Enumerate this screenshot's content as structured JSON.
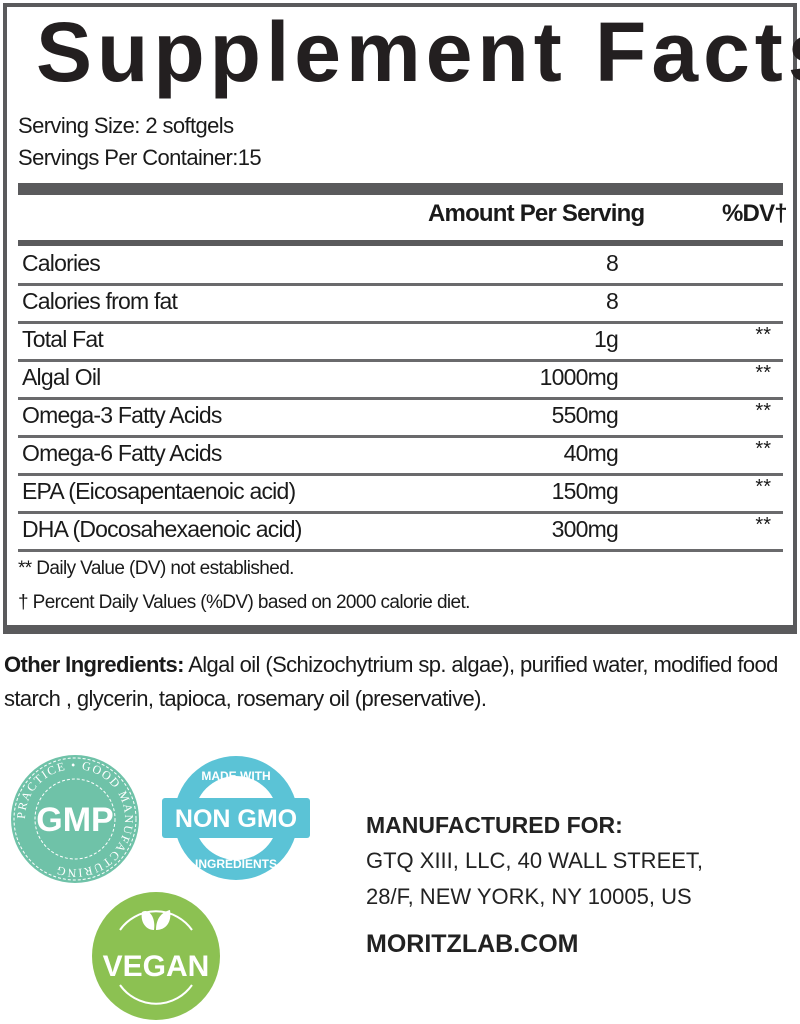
{
  "title": "Supplement Facts",
  "serving_size": "Serving Size: 2 softgels",
  "servings_per_container": "Servings Per Container:15",
  "headers": {
    "amount": "Amount Per Serving",
    "dv": "%DV†"
  },
  "rows": [
    {
      "name": "Calories",
      "amount": "8",
      "dv": ""
    },
    {
      "name": "Calories from fat",
      "amount": "8",
      "dv": ""
    },
    {
      "name": "Total Fat",
      "amount": "1g",
      "dv": "**"
    },
    {
      "name": "Algal Oil",
      "amount": "1000mg",
      "dv": "**"
    },
    {
      "name": "Omega-3 Fatty Acids",
      "amount": "550mg",
      "dv": "**"
    },
    {
      "name": "Omega-6 Fatty Acids",
      "amount": "40mg",
      "dv": "**"
    },
    {
      "name": "EPA (Eicosapentaenoic acid)",
      "amount": "150mg",
      "dv": "**"
    },
    {
      "name": "DHA (Docosahexaenoic acid)",
      "amount": "300mg",
      "dv": "**"
    }
  ],
  "footnotes": [
    "** Daily Value (DV) not established.",
    "† Percent Daily Values (%DV) based on 2000 calorie diet."
  ],
  "other_ingredients": {
    "label": "Other Ingredients:",
    "text": " Algal oil (Schizochytrium sp. algae), purified water, modified food starch , glycerin, tapioca, rosemary oil (preservative)."
  },
  "badges": {
    "gmp": {
      "main": "GMP",
      "ring": "PRACTICE • GOOD MANUFACTURING",
      "color": "#6fc2a8"
    },
    "non_gmo": {
      "top": "MADE WITH",
      "main": "NON GMO",
      "bottom": "INGREDIENTS",
      "color": "#5bc3d6"
    },
    "vegan": {
      "main": "VEGAN",
      "color": "#8cc152"
    }
  },
  "manufacturer": {
    "heading": "MANUFACTURED FOR:",
    "line1": "GTQ XIII, LLC, 40 WALL STREET,",
    "line2": "28/F, NEW YORK, NY 10005, US",
    "website": "MORITZLAB.COM"
  }
}
